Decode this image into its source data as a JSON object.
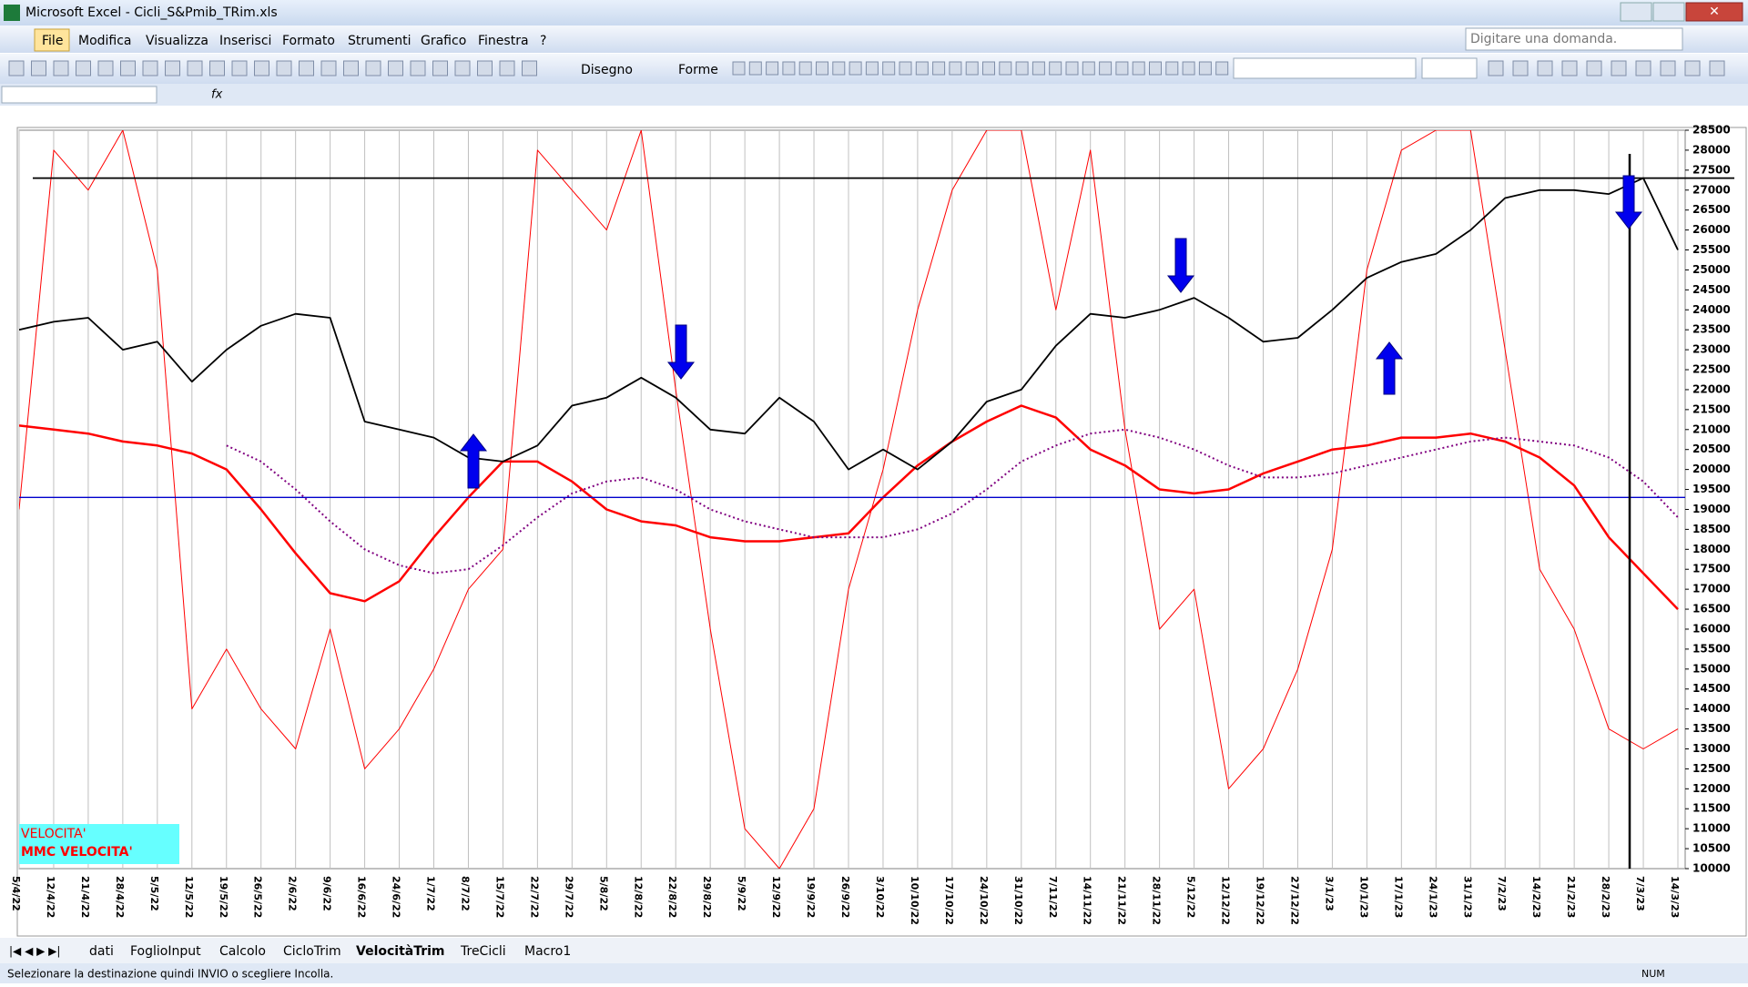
{
  "window": {
    "title": "Microsoft Excel - Cicli_S&Pmib_TRim.xls"
  },
  "menu": [
    "File",
    "Modifica",
    "Visualizza",
    "Inserisci",
    "Formato",
    "Strumenti",
    "Grafico",
    "Finestra",
    "?"
  ],
  "help_box": "Digitare una domanda.",
  "toolbar": {
    "draw": "Disegno",
    "shapes": "Forme"
  },
  "sheet_tabs": [
    "dati",
    "FoglioInput",
    "Calcolo",
    "CicloTrim",
    "VelocitàTrim",
    "TreCicli",
    "Macro1"
  ],
  "active_tab": 4,
  "status": {
    "message": "Selezionare la destinazione quindi INVIO o scegliere Incolla.",
    "num": "NUM"
  },
  "chart_data": {
    "type": "line",
    "categories": [
      "5/4/22",
      "12/4/22",
      "21/4/22",
      "28/4/22",
      "5/5/22",
      "12/5/22",
      "19/5/22",
      "26/5/22",
      "2/6/22",
      "9/6/22",
      "16/6/22",
      "24/6/22",
      "1/7/22",
      "8/7/22",
      "15/7/22",
      "22/7/22",
      "29/7/22",
      "5/8/22",
      "12/8/22",
      "22/8/22",
      "29/8/22",
      "5/9/22",
      "12/9/22",
      "19/9/22",
      "26/9/22",
      "3/10/22",
      "10/10/22",
      "17/10/22",
      "24/10/22",
      "31/10/22",
      "7/11/22",
      "14/11/22",
      "21/11/22",
      "28/11/22",
      "5/12/22",
      "12/12/22",
      "19/12/22",
      "27/12/22",
      "3/1/23",
      "10/1/23",
      "17/1/23",
      "24/1/23",
      "31/1/23",
      "7/2/23",
      "14/2/23",
      "21/2/23",
      "28/2/23",
      "7/3/23",
      "14/3/23"
    ],
    "series": [
      {
        "name": "VELOCITA'",
        "color": "#ff0000",
        "width": 1,
        "values": [
          19000,
          28000,
          27000,
          28500,
          25000,
          14000,
          15500,
          14000,
          13000,
          16000,
          12500,
          13500,
          15000,
          17000,
          18000,
          28000,
          27000,
          26000,
          28500,
          22000,
          16000,
          11000,
          10000,
          11500,
          17000,
          20000,
          24000,
          27000,
          28500,
          28500,
          24000,
          28000,
          21000,
          16000,
          17000,
          12000,
          13000,
          15000,
          18000,
          25000,
          28000,
          28500,
          28500,
          23000,
          17500,
          16000,
          13500,
          13000,
          13500
        ]
      },
      {
        "name": "MMC VELOCITA'",
        "color": "#ff0000",
        "width": 2.5,
        "values": [
          21100,
          21000,
          20900,
          20700,
          20600,
          20400,
          20000,
          19000,
          17900,
          16900,
          16700,
          17200,
          18300,
          19300,
          20200,
          20200,
          19700,
          19000,
          18700,
          18600,
          18300,
          18200,
          18200,
          18300,
          18400,
          19300,
          20100,
          20700,
          21200,
          21600,
          21300,
          20500,
          20100,
          19500,
          19400,
          19500,
          19900,
          20200,
          20500,
          20600,
          20800,
          20800,
          20900,
          20700,
          20300,
          19600,
          18300,
          17400,
          16500
        ]
      },
      {
        "color": "#800080",
        "width": 2,
        "dotted": true,
        "values": [
          null,
          null,
          null,
          null,
          null,
          null,
          20600,
          20200,
          19500,
          18700,
          18000,
          17600,
          17400,
          17500,
          18100,
          18800,
          19400,
          19700,
          19800,
          19500,
          19000,
          18700,
          18500,
          18300,
          18300,
          18300,
          18500,
          18900,
          19500,
          20200,
          20600,
          20900,
          21000,
          20800,
          20500,
          20100,
          19800,
          19800,
          19900,
          20100,
          20300,
          20500,
          20700,
          20800,
          20700,
          20600,
          20300,
          19700,
          18800
        ]
      },
      {
        "color": "#000000",
        "width": 1.8,
        "values": [
          23500,
          23700,
          23800,
          23000,
          23200,
          22200,
          23000,
          23600,
          23900,
          23800,
          21200,
          21000,
          20800,
          20300,
          20200,
          20600,
          21600,
          21800,
          22300,
          21800,
          21000,
          20900,
          21800,
          21200,
          20000,
          20500,
          20000,
          20700,
          21700,
          22000,
          23100,
          23900,
          23800,
          24000,
          24300,
          23800,
          23200,
          23300,
          24000,
          24800,
          25200,
          25400,
          26000,
          26800,
          27000,
          27000,
          26900,
          27300,
          25500
        ]
      }
    ],
    "hlines": [
      {
        "value": 27300,
        "color": "#000000"
      },
      {
        "value": 19300,
        "color": "#0000cc"
      }
    ],
    "ylim": [
      10000,
      28500
    ],
    "yticks": [
      10000,
      10500,
      11000,
      11500,
      12000,
      12500,
      13000,
      13500,
      14000,
      14500,
      15000,
      15500,
      16000,
      16500,
      17000,
      17500,
      18000,
      18500,
      19000,
      19500,
      20000,
      20500,
      21000,
      21500,
      22000,
      22500,
      23000,
      23500,
      24000,
      24500,
      25000,
      25500,
      26000,
      26500,
      27000,
      27500,
      28000,
      28500
    ],
    "x_grid": true,
    "legend_bg": "#66ffff"
  }
}
